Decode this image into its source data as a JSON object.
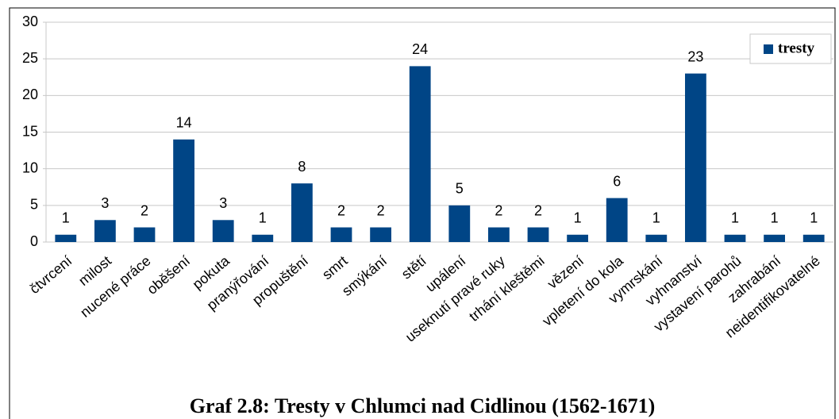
{
  "chart_data": {
    "type": "bar",
    "title": "Graf 2.8: Tresty v Chlumci nad Cidlinou (1562-1671)",
    "categories": [
      "čtvrcení",
      "milost",
      "nucené práce",
      "oběšení",
      "pokuta",
      "pranýřování",
      "propuštění",
      "smrt",
      "smýkání",
      "stětí",
      "upálení",
      "useknutí pravé ruky",
      "trhání kleštěmi",
      "vězení",
      "vpletení do kola",
      "vymrskání",
      "vyhnanství",
      "vystavení parohů",
      "zahrabání",
      "neidentifikovatelné"
    ],
    "series": [
      {
        "name": "tresty",
        "color": "#004586",
        "values": [
          1,
          3,
          2,
          14,
          3,
          1,
          8,
          2,
          2,
          24,
          5,
          2,
          2,
          1,
          6,
          1,
          23,
          1,
          1,
          1
        ]
      }
    ],
    "ylim": [
      0,
      30
    ],
    "yticks": [
      0,
      5,
      10,
      15,
      20,
      25,
      30
    ],
    "grid": true,
    "legend": "top-right"
  }
}
